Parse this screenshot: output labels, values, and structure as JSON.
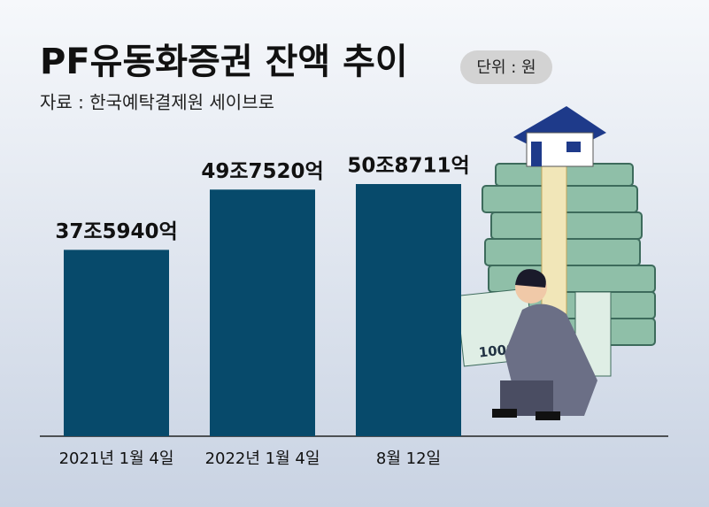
{
  "chart_data": {
    "type": "bar",
    "title": "PF유동화증권 잔액 추이",
    "unit": "단위 : 원",
    "source": "자료 : 한국예탁결제원 세이브로",
    "categories": [
      "2021년 1월 4일",
      "2022년 1월 4일",
      "8월 12일"
    ],
    "values": [
      37594000000000,
      49752000000000,
      50871100000000
    ],
    "value_labels": [
      "37조5940억",
      "49조7520억",
      "50조8711억"
    ],
    "color": "#074a6b"
  }
}
